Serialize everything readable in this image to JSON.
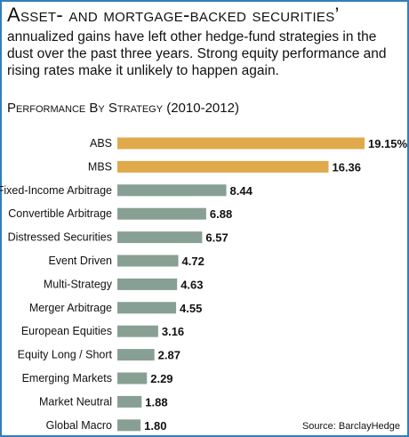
{
  "header": {
    "title": "Asset- and mortgage-backed securities’",
    "intro": "annualized gains have left other hedge-fund strategies in the dust over the past three years. Strong equity performance and rising rates make it unlikely to happen again."
  },
  "chart_data": {
    "type": "bar",
    "orientation": "horizontal",
    "title": "Performance By Strategy (2010-2012)",
    "categories": [
      "ABS",
      "MBS",
      "Fixed-Income Arbitrage",
      "Convertible Arbitrage",
      "Distressed Securities",
      "Event Driven",
      "Multi-Strategy",
      "Merger Arbitrage",
      "European Equities",
      "Equity Long / Short",
      "Emerging Markets",
      "Market Neutral",
      "Global Macro"
    ],
    "values": [
      19.15,
      16.36,
      8.44,
      6.88,
      6.57,
      4.72,
      4.63,
      4.55,
      3.16,
      2.87,
      2.29,
      1.88,
      1.8
    ],
    "value_labels": [
      "19.15%",
      "16.36",
      "8.44",
      "6.88",
      "6.57",
      "4.72",
      "4.63",
      "4.55",
      "3.16",
      "2.87",
      "2.29",
      "1.88",
      "1.80"
    ],
    "highlight_color": "#e0a94a",
    "bar_color": "#87a093",
    "highlighted_categories": [
      "ABS",
      "MBS"
    ],
    "grid": false
  },
  "source": "Source: BarclayHedge"
}
